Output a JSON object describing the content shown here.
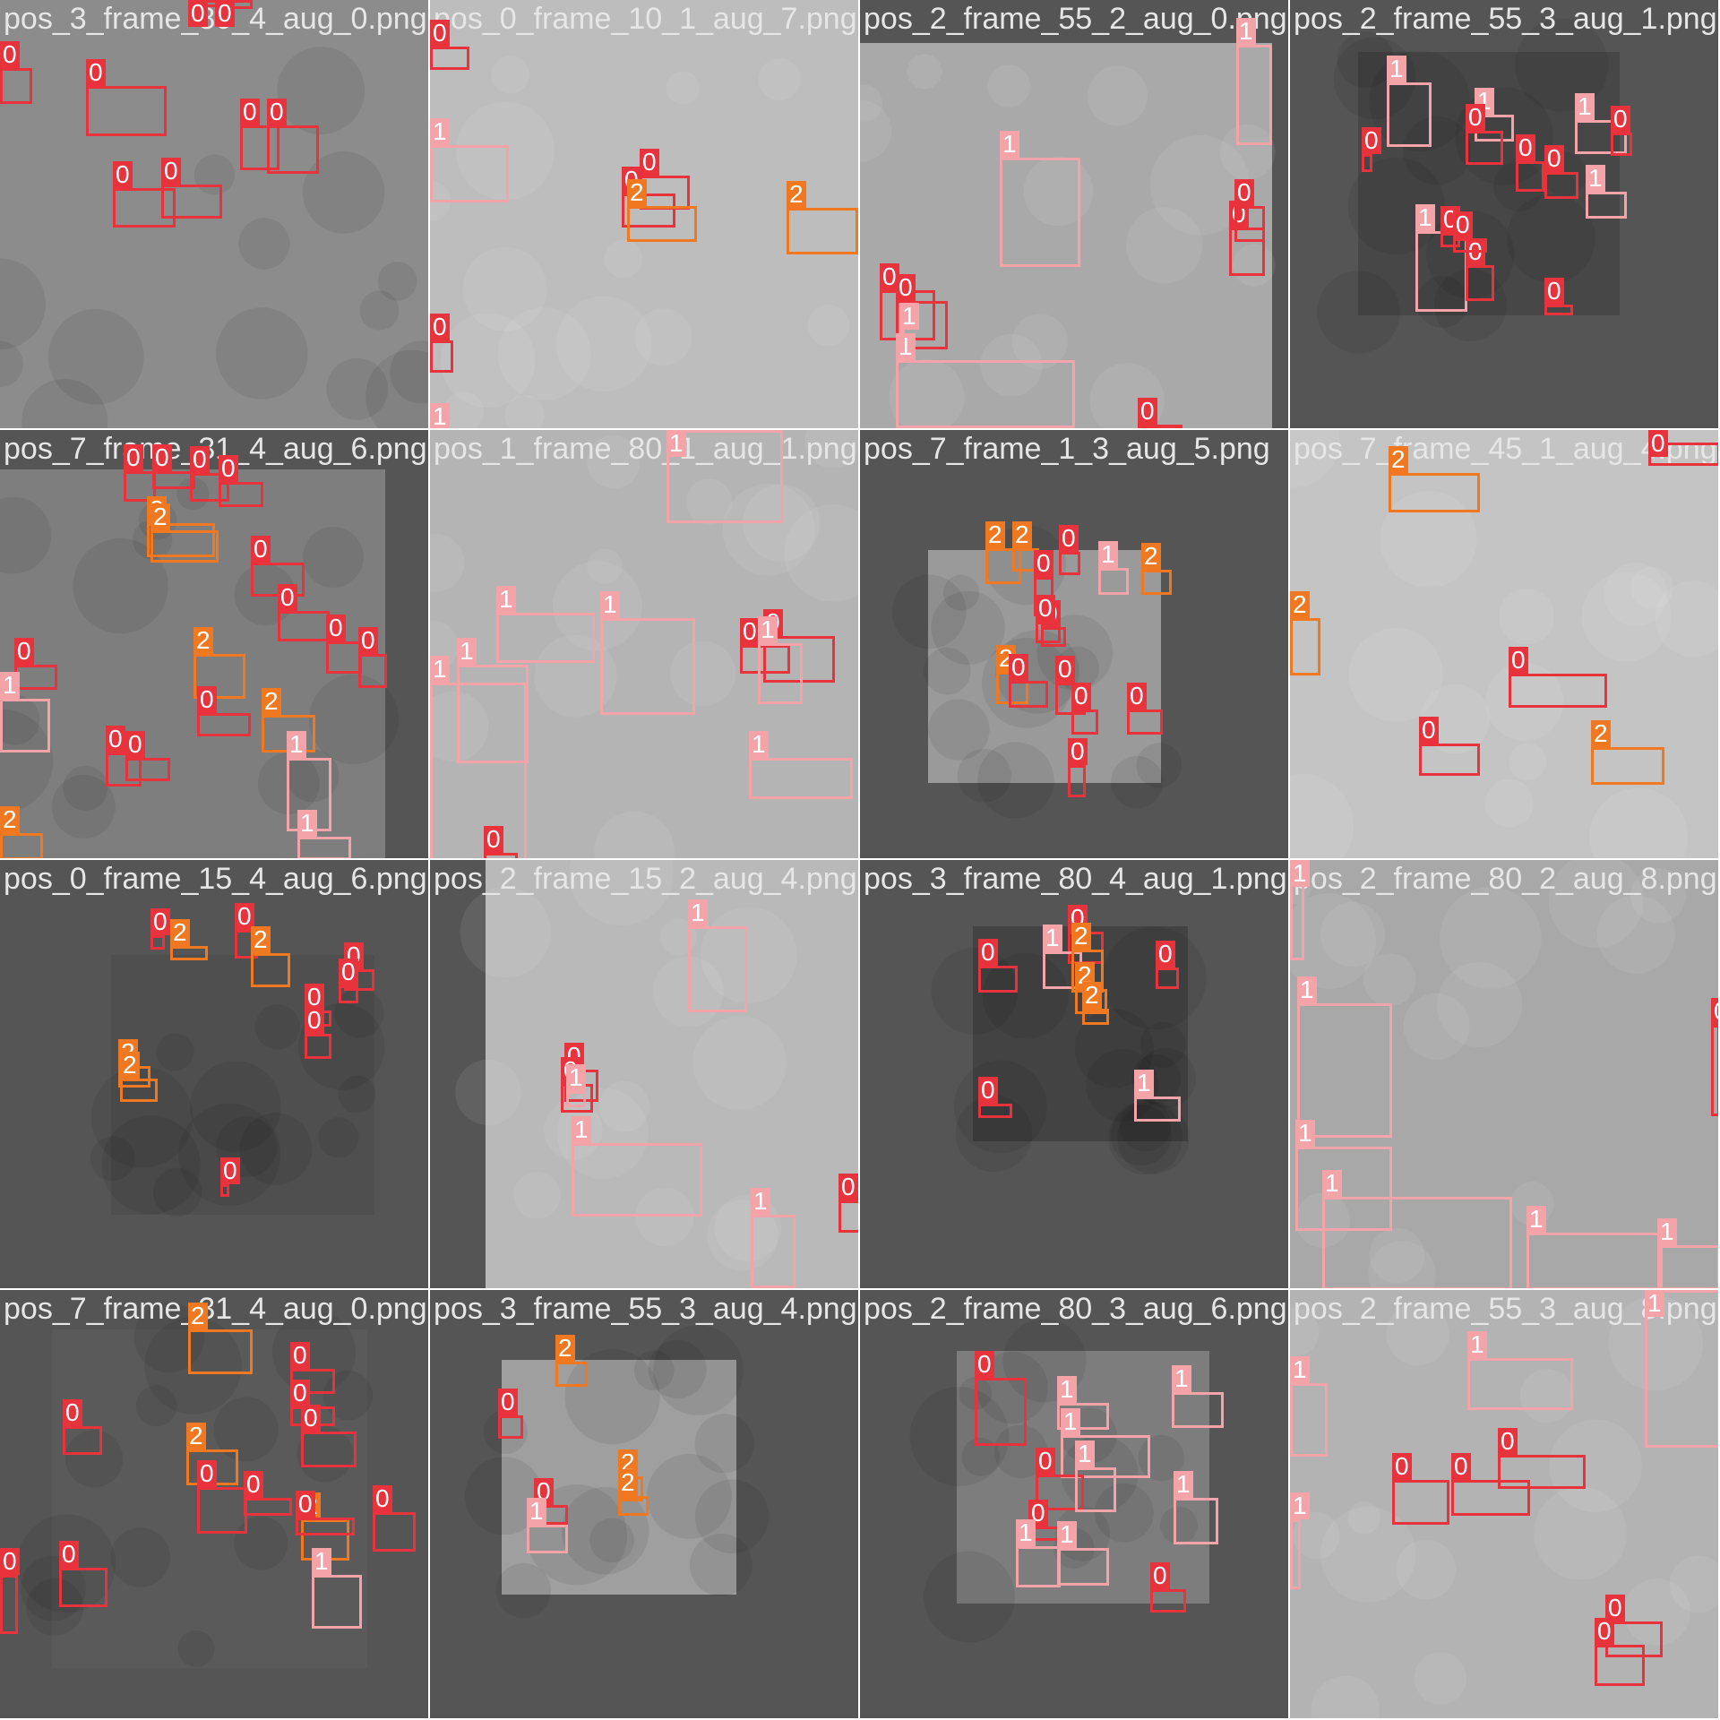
{
  "colors": {
    "class_0": "#e8323c",
    "class_1": "#f4a3a8",
    "class_2": "#f07820",
    "tile_title": "#e6e6e6"
  },
  "tiles": [
    {
      "title": "pos_3_frame_80_4_aug_0.png",
      "tone": "mid",
      "fill": "#8c8c8c",
      "detections": [
        {
          "cls": "0"
        },
        {
          "cls": "0"
        },
        {
          "cls": "0"
        },
        {
          "cls": "0"
        },
        {
          "cls": "0"
        },
        {
          "cls": "0"
        },
        {
          "cls": "0"
        },
        {
          "cls": "0"
        }
      ]
    },
    {
      "title": "pos_0_frame_10_1_aug_7.png",
      "tone": "light",
      "fill": "#bdbdbd",
      "detections": [
        {
          "cls": "1"
        },
        {
          "cls": "0"
        },
        {
          "cls": "1"
        },
        {
          "cls": "0"
        },
        {
          "cls": "0"
        },
        {
          "cls": "2"
        },
        {
          "cls": "2"
        },
        {
          "cls": "0"
        },
        {
          "cls": "1"
        }
      ]
    },
    {
      "title": "pos_2_frame_55_2_aug_0.png",
      "tone": "light",
      "fill": "#a9a9a9",
      "detections": [
        {
          "cls": "1"
        },
        {
          "cls": "1"
        },
        {
          "cls": "0"
        },
        {
          "cls": "0"
        },
        {
          "cls": "0"
        },
        {
          "cls": "0"
        },
        {
          "cls": "1"
        },
        {
          "cls": "1"
        },
        {
          "cls": "0"
        }
      ]
    },
    {
      "title": "pos_2_frame_55_3_aug_1.png",
      "tone": "dark",
      "fill": "#474747",
      "detections": [
        {
          "cls": "1"
        },
        {
          "cls": "1"
        },
        {
          "cls": "1"
        },
        {
          "cls": "0"
        },
        {
          "cls": "0"
        },
        {
          "cls": "0"
        },
        {
          "cls": "0"
        },
        {
          "cls": "1"
        },
        {
          "cls": "0"
        },
        {
          "cls": "0"
        },
        {
          "cls": "1"
        },
        {
          "cls": "0"
        },
        {
          "cls": "0"
        },
        {
          "cls": "0"
        }
      ]
    },
    {
      "title": "pos_7_frame_31_4_aug_6.png",
      "tone": "mid",
      "fill": "#7e7e7e",
      "detections": [
        {
          "cls": "0"
        },
        {
          "cls": "0"
        },
        {
          "cls": "0"
        },
        {
          "cls": "0"
        },
        {
          "cls": "2"
        },
        {
          "cls": "2"
        },
        {
          "cls": "0"
        },
        {
          "cls": "0"
        },
        {
          "cls": "0"
        },
        {
          "cls": "0"
        },
        {
          "cls": "0"
        },
        {
          "cls": "1"
        },
        {
          "cls": "2"
        },
        {
          "cls": "0"
        },
        {
          "cls": "2"
        },
        {
          "cls": "0"
        },
        {
          "cls": "0"
        },
        {
          "cls": "1"
        },
        {
          "cls": "1"
        },
        {
          "cls": "2"
        }
      ]
    },
    {
      "title": "pos_1_frame_80_1_aug_1.png",
      "tone": "light",
      "fill": "#b4b4b4",
      "detections": [
        {
          "cls": "1"
        },
        {
          "cls": "1"
        },
        {
          "cls": "1"
        },
        {
          "cls": "0"
        },
        {
          "cls": "0"
        },
        {
          "cls": "1"
        },
        {
          "cls": "1"
        },
        {
          "cls": "1"
        },
        {
          "cls": "1"
        },
        {
          "cls": "1"
        },
        {
          "cls": "0"
        }
      ]
    },
    {
      "title": "pos_7_frame_1_3_aug_5.png",
      "tone": "gray",
      "fill": "#9a9a9a",
      "detections": [
        {
          "cls": "2"
        },
        {
          "cls": "2"
        },
        {
          "cls": "0"
        },
        {
          "cls": "1"
        },
        {
          "cls": "2"
        },
        {
          "cls": "0"
        },
        {
          "cls": "0"
        },
        {
          "cls": "0"
        },
        {
          "cls": "2"
        },
        {
          "cls": "0"
        },
        {
          "cls": "0"
        },
        {
          "cls": "0"
        },
        {
          "cls": "0"
        },
        {
          "cls": "0"
        }
      ]
    },
    {
      "title": "pos_7_frame_45_1_aug_4.png",
      "tone": "light",
      "fill": "#c4c4c4",
      "detections": [
        {
          "cls": "0"
        },
        {
          "cls": "2"
        },
        {
          "cls": "2"
        },
        {
          "cls": "0"
        },
        {
          "cls": "0"
        },
        {
          "cls": "2"
        }
      ]
    },
    {
      "title": "pos_0_frame_15_4_aug_6.png",
      "tone": "dark",
      "fill": "#4f4f4f",
      "detections": [
        {
          "cls": "0"
        },
        {
          "cls": "2"
        },
        {
          "cls": "0"
        },
        {
          "cls": "2"
        },
        {
          "cls": "0"
        },
        {
          "cls": "0"
        },
        {
          "cls": "0"
        },
        {
          "cls": "0"
        },
        {
          "cls": "2"
        },
        {
          "cls": "2"
        },
        {
          "cls": "0"
        }
      ]
    },
    {
      "title": "pos_2_frame_15_2_aug_4.png",
      "tone": "light",
      "fill": "#b9b9b9",
      "detections": [
        {
          "cls": "1"
        },
        {
          "cls": "0"
        },
        {
          "cls": "0"
        },
        {
          "cls": "1"
        },
        {
          "cls": "1"
        },
        {
          "cls": "1"
        },
        {
          "cls": "0"
        }
      ]
    },
    {
      "title": "pos_3_frame_80_4_aug_1.png",
      "tone": "dark",
      "fill": "#434343",
      "detections": [
        {
          "cls": "0"
        },
        {
          "cls": "1"
        },
        {
          "cls": "0"
        },
        {
          "cls": "2"
        },
        {
          "cls": "2"
        },
        {
          "cls": "2"
        },
        {
          "cls": "0"
        },
        {
          "cls": "0"
        },
        {
          "cls": "1"
        }
      ]
    },
    {
      "title": "pos_2_frame_80_2_aug_8.png",
      "tone": "light",
      "fill": "#a8a8a8",
      "detections": [
        {
          "cls": "1"
        },
        {
          "cls": "1"
        },
        {
          "cls": "1"
        },
        {
          "cls": "1"
        },
        {
          "cls": "1"
        },
        {
          "cls": "1"
        },
        {
          "cls": "0"
        }
      ]
    },
    {
      "title": "pos_7_frame_31_4_aug_0.png",
      "tone": "dark",
      "fill": "#5a5a5a",
      "detections": [
        {
          "cls": "2"
        },
        {
          "cls": "0"
        },
        {
          "cls": "0"
        },
        {
          "cls": "0"
        },
        {
          "cls": "0"
        },
        {
          "cls": "2"
        },
        {
          "cls": "0"
        },
        {
          "cls": "0"
        },
        {
          "cls": "2"
        },
        {
          "cls": "0"
        },
        {
          "cls": "0"
        },
        {
          "cls": "1"
        },
        {
          "cls": "0"
        },
        {
          "cls": "0"
        }
      ]
    },
    {
      "title": "pos_3_frame_55_3_aug_4.png",
      "tone": "gray",
      "fill": "#9f9f9f",
      "detections": [
        {
          "cls": "2"
        },
        {
          "cls": "0"
        },
        {
          "cls": "2"
        },
        {
          "cls": "2"
        },
        {
          "cls": "0"
        },
        {
          "cls": "1"
        }
      ]
    },
    {
      "title": "pos_2_frame_80_3_aug_6.png",
      "tone": "mid",
      "fill": "#7d7d7d",
      "detections": [
        {
          "cls": "0"
        },
        {
          "cls": "1"
        },
        {
          "cls": "1"
        },
        {
          "cls": "1"
        },
        {
          "cls": "0"
        },
        {
          "cls": "1"
        },
        {
          "cls": "1"
        },
        {
          "cls": "0"
        },
        {
          "cls": "1"
        },
        {
          "cls": "1"
        },
        {
          "cls": "0"
        }
      ]
    },
    {
      "title": "pos_2_frame_55_3_aug_8.png",
      "tone": "light",
      "fill": "#b3b3b3",
      "detections": [
        {
          "cls": "1"
        },
        {
          "cls": "1"
        },
        {
          "cls": "1"
        },
        {
          "cls": "0"
        },
        {
          "cls": "0"
        },
        {
          "cls": "0"
        },
        {
          "cls": "1"
        },
        {
          "cls": "0"
        },
        {
          "cls": "0"
        }
      ]
    }
  ]
}
